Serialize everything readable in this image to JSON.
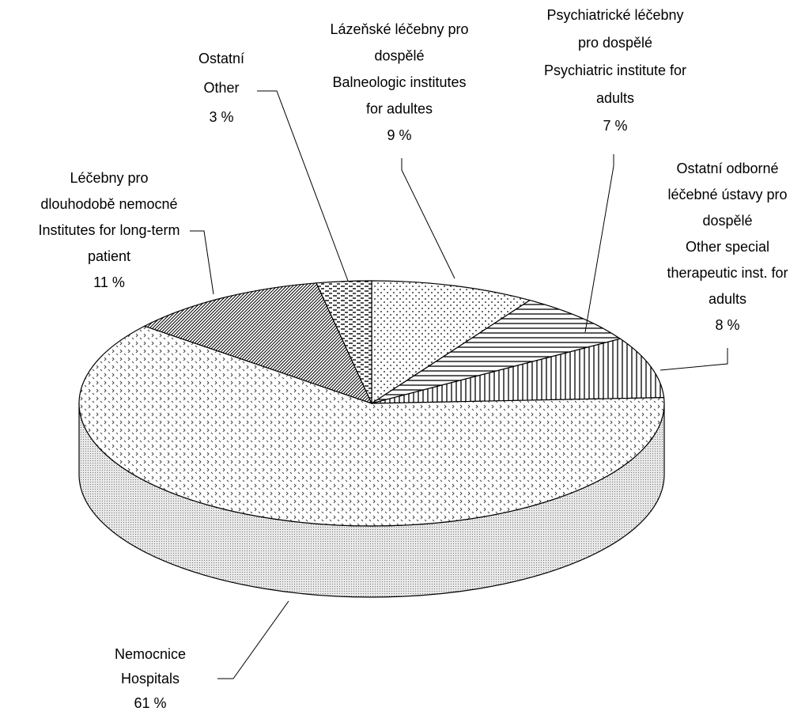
{
  "chart_data": {
    "type": "pie3d",
    "labels": [
      [
        "Lázeňské léčebny pro",
        "dospělé",
        "Balneologic institutes",
        "for adultes"
      ],
      [
        "Psychiatrické léčebny",
        "pro dospělé",
        "Psychiatric institute for",
        "adults"
      ],
      [
        "Ostatní odborné",
        "léčebné ústavy pro",
        "dospělé",
        "Other special",
        "therapeutic inst. for",
        "adults"
      ],
      [
        "Nemocnice",
        "Hospitals"
      ],
      [
        "Léčebny pro",
        "dlouhodobě nemocné",
        "Institutes for long-term",
        "patient"
      ],
      [
        "Ostatní",
        "Other"
      ]
    ],
    "values": [
      9,
      7,
      8,
      61,
      11,
      3
    ],
    "value_labels": [
      "9 %",
      "7 %",
      "8 %",
      "61 %",
      "11 %",
      "3 %"
    ],
    "patterns": [
      "dots",
      "horizontal",
      "vertical",
      "diamonds",
      "diagonal",
      "dashes"
    ],
    "start_angle": -90
  }
}
